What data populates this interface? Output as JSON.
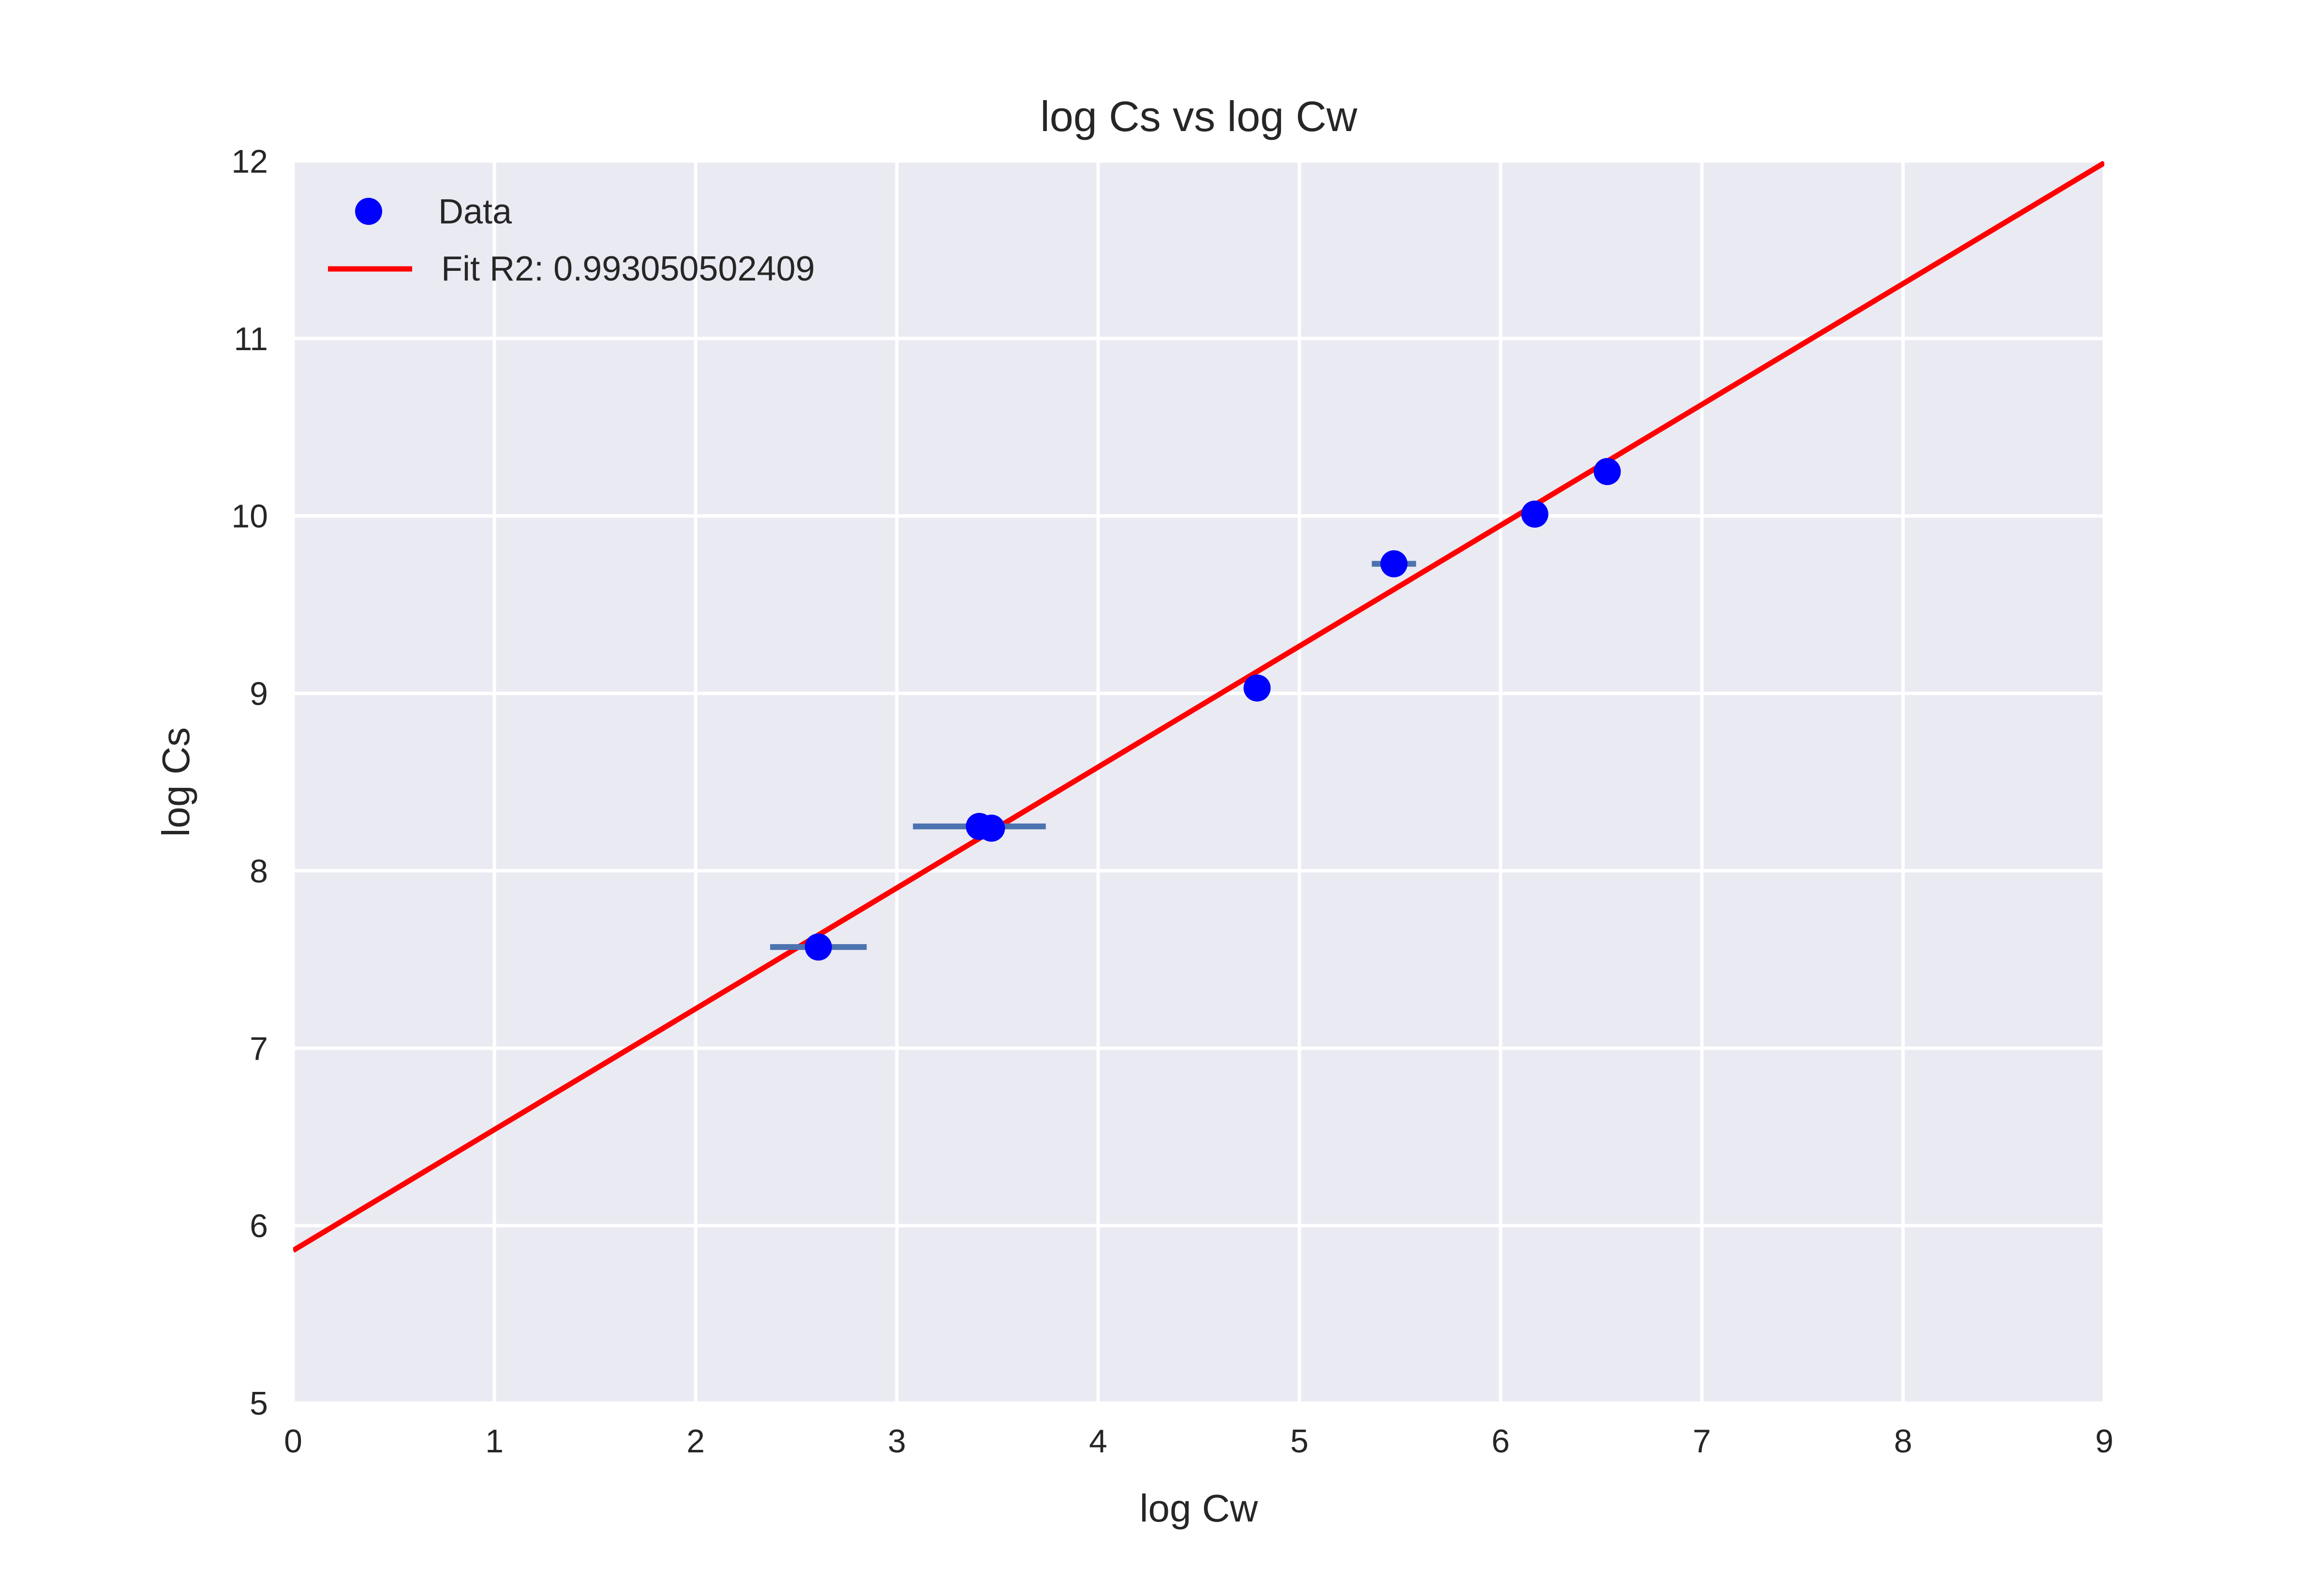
{
  "chart_data": {
    "type": "scatter",
    "title": "log Cs vs log Cw",
    "xlabel": "log Cw",
    "ylabel": "log Cs",
    "xlim": [
      0,
      9
    ],
    "ylim": [
      5,
      12
    ],
    "xticks": [
      "0",
      "1",
      "2",
      "3",
      "4",
      "5",
      "6",
      "7",
      "8",
      "9"
    ],
    "yticks": [
      "5",
      "6",
      "7",
      "8",
      "9",
      "10",
      "11",
      "12"
    ],
    "grid": true,
    "legend_position": "top-left",
    "colors": {
      "axes_background": "#eaeaf2",
      "grid": "#ffffff",
      "data_marker": "#0000ff",
      "error_bar": "#4c72b0",
      "fit_line": "#ff0000",
      "text": "#262626"
    },
    "series": [
      {
        "name": "Data",
        "kind": "scatter",
        "points": [
          {
            "x": 2.61,
            "y": 7.57,
            "xerr": 0.24
          },
          {
            "x": 3.41,
            "y": 8.25,
            "xerr": 0.33
          },
          {
            "x": 3.47,
            "y": 8.24,
            "xerr": 0.0
          },
          {
            "x": 4.79,
            "y": 9.03,
            "xerr": 0.0
          },
          {
            "x": 5.47,
            "y": 9.73,
            "xerr": 0.11
          },
          {
            "x": 6.17,
            "y": 10.01,
            "xerr": 0.0
          },
          {
            "x": 6.53,
            "y": 10.25,
            "xerr": 0.0
          }
        ]
      },
      {
        "name": "Fit R2: 0.993050502409",
        "kind": "line",
        "x": [
          0,
          9
        ],
        "y": [
          5.86,
          11.99
        ]
      }
    ]
  }
}
